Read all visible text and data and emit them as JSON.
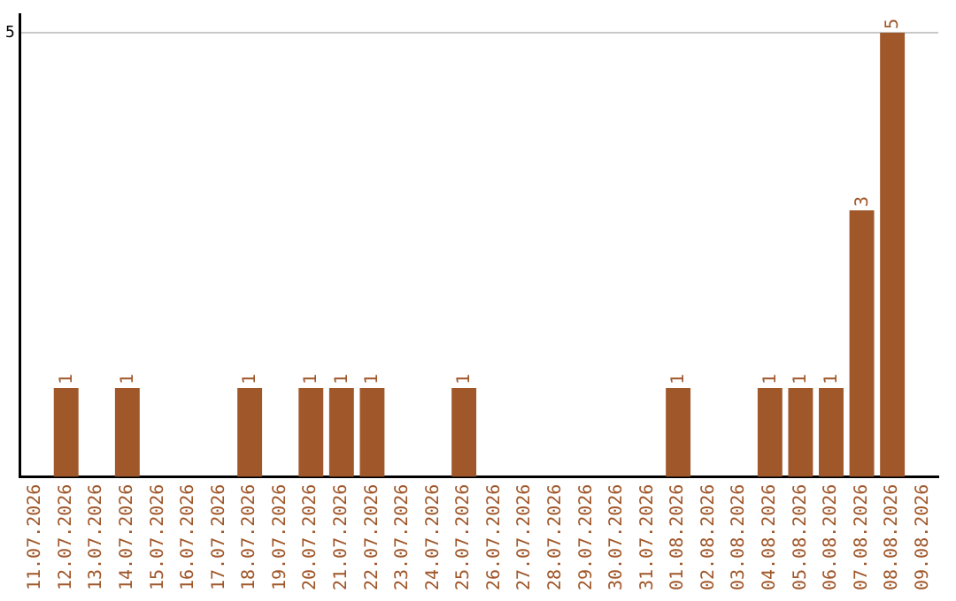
{
  "chart_data": {
    "type": "bar",
    "categories": [
      "11.07.2026",
      "12.07.2026",
      "13.07.2026",
      "14.07.2026",
      "15.07.2026",
      "16.07.2026",
      "17.07.2026",
      "18.07.2026",
      "19.07.2026",
      "20.07.2026",
      "21.07.2026",
      "22.07.2026",
      "23.07.2026",
      "24.07.2026",
      "25.07.2026",
      "26.07.2026",
      "27.07.2026",
      "28.07.2026",
      "29.07.2026",
      "30.07.2026",
      "31.07.2026",
      "01.08.2026",
      "02.08.2026",
      "03.08.2026",
      "04.08.2026",
      "05.08.2026",
      "06.08.2026",
      "07.08.2026",
      "08.08.2026",
      "09.08.2026"
    ],
    "values": [
      0,
      1,
      0,
      1,
      0,
      0,
      0,
      1,
      0,
      1,
      1,
      1,
      0,
      0,
      1,
      0,
      0,
      0,
      0,
      0,
      0,
      1,
      0,
      0,
      1,
      1,
      1,
      3,
      5,
      0
    ],
    "value_labels": [
      null,
      "1",
      null,
      "1",
      null,
      null,
      null,
      "1",
      null,
      "1",
      "1",
      "1",
      null,
      null,
      "1",
      null,
      null,
      null,
      null,
      null,
      null,
      "1",
      null,
      null,
      "1",
      "1",
      "1",
      "3",
      "5",
      null
    ],
    "color": "#a0572a",
    "ylim": [
      0,
      5.2
    ],
    "yticks": [
      5
    ],
    "grid": "y",
    "legend": false
  }
}
